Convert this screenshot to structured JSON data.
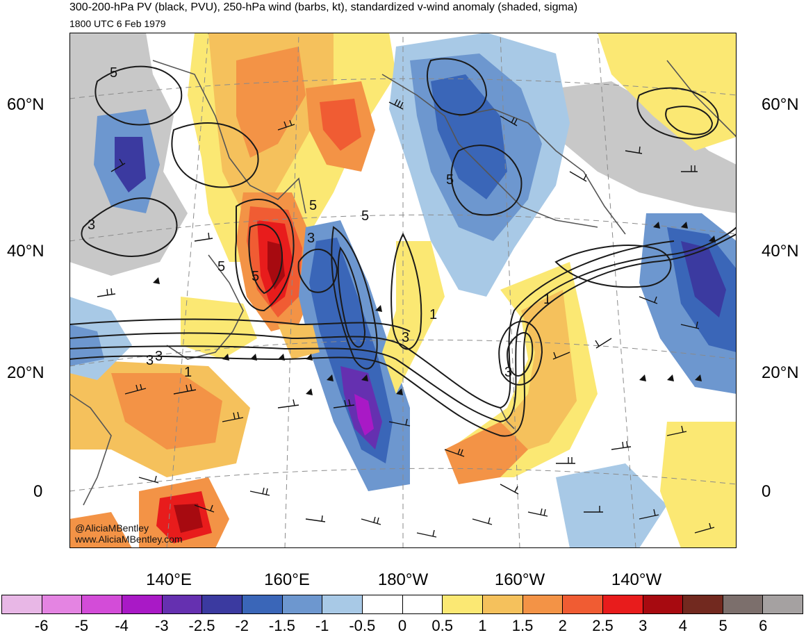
{
  "title": "300-200-hPa PV (black, PVU), 250-hPa wind (barbs, kt), standardized v-wind anomaly (shaded, sigma)",
  "subtitle": "1800 UTC 6 Feb 1979",
  "credit": {
    "handle": "@AliciaMBentley",
    "website": "www.AliciaMBentley.com"
  },
  "lat_labels": {
    "n60": "60°N",
    "n40": "40°N",
    "n20": "20°N",
    "eq": "0"
  },
  "lon_labels": {
    "e140": "140°E",
    "e160": "160°E",
    "w180": "180°W",
    "w160": "160°W",
    "w140": "140°W"
  },
  "pv_contour_labels": [
    "5",
    "3",
    "1",
    "5",
    "3",
    "5",
    "5",
    "5",
    "3",
    "1",
    "3",
    "3",
    "1",
    "3",
    "5"
  ],
  "colorbar": {
    "labels": [
      "-6",
      "-5",
      "-4",
      "-3",
      "-2.5",
      "-2",
      "-1.5",
      "-1",
      "-0.5",
      "0",
      "0.5",
      "1",
      "1.5",
      "2",
      "2.5",
      "3",
      "4",
      "5",
      "6"
    ],
    "colors": [
      "#e8b7e6",
      "#e484e2",
      "#d34cd8",
      "#a919c6",
      "#6530b0",
      "#3b3aa0",
      "#3a66b8",
      "#6d97cf",
      "#a8c9e6",
      "#ffffff",
      "#ffffff",
      "#fbe873",
      "#f5c15c",
      "#f39346",
      "#f05c33",
      "#e81c1c",
      "#a70a10",
      "#72291f",
      "#7c6f6c",
      "#a5a1a1"
    ]
  },
  "map_colors": {
    "land_gray": "#c8c8c8",
    "coast": "#555555",
    "pv_contour": "#1a1a1a",
    "grid": "#8a8a8a"
  }
}
